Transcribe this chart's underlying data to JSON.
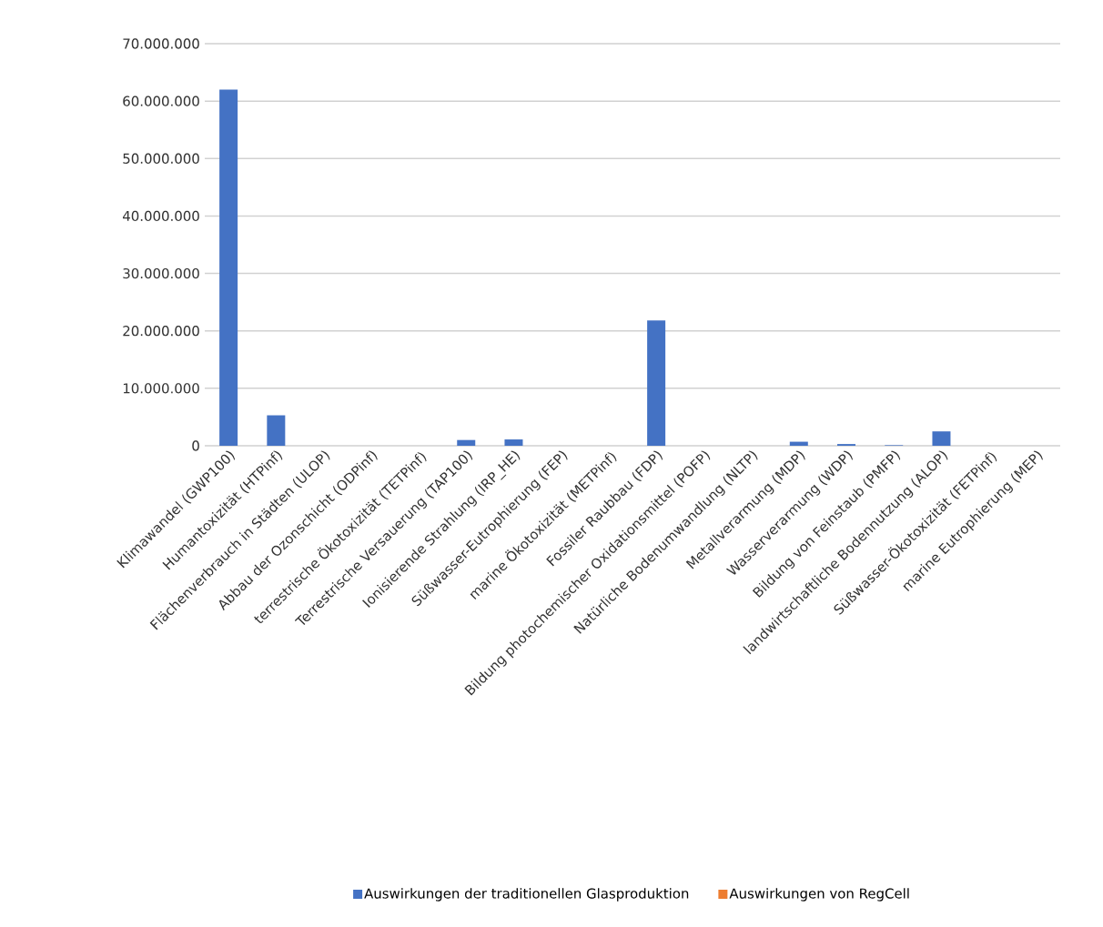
{
  "chart_data": {
    "type": "bar",
    "stacked": true,
    "categories": [
      "Klimawandel (GWP100)",
      "Humantoxizität (HTPinf)",
      "Flächenverbrauch in Städten (ULOP)",
      "Abbau der Ozonschicht (ODPinf)",
      "terrestrische Ökotoxizität (TETPinf)",
      "Terrestrische Versauerung (TAP100)",
      "Ionisierende Strahlung (IRP_HE)",
      "Süßwasser-Eutrophierung (FEP)",
      "marine Ökotoxizität (METPinf)",
      "Fossiler Raubbau (FDP)",
      "Bildung photochemischer Oxidationsmittel (POFP)",
      "Natürliche Bodenumwandlung (NLTP)",
      "Metallverarmung (MDP)",
      "Wasserverarmung (WDP)",
      "Bildung von Feinstaub (PMFP)",
      "landwirtschaftliche Bodennutzung (ALOP)",
      "Süßwasser-Ökotoxizität (FETPinf)",
      "marine Eutrophierung (MEP)"
    ],
    "series": [
      {
        "name": "Auswirkungen der traditionellen Glasproduktion",
        "color": "#4472c4",
        "values": [
          62000000,
          5300000,
          0,
          0,
          0,
          1000000,
          1100000,
          0,
          0,
          21800000,
          0,
          0,
          700000,
          300000,
          100000,
          2500000,
          0,
          0
        ]
      },
      {
        "name": "Auswirkungen von RegCell",
        "color": "#ed7d31",
        "values": [
          0,
          0,
          0,
          0,
          0,
          0,
          0,
          0,
          0,
          0,
          0,
          0,
          0,
          0,
          0,
          0,
          0,
          0
        ]
      }
    ],
    "ylim": [
      0,
      70000000
    ],
    "yticks": [
      {
        "value": 0,
        "label": "0"
      },
      {
        "value": 10000000,
        "label": "10.000.000"
      },
      {
        "value": 20000000,
        "label": "20.000.000"
      },
      {
        "value": 30000000,
        "label": "30.000.000"
      },
      {
        "value": 40000000,
        "label": "40.000.000"
      },
      {
        "value": 50000000,
        "label": "50.000.000"
      },
      {
        "value": 60000000,
        "label": "60.000.000"
      },
      {
        "value": 70000000,
        "label": "70.000.000"
      }
    ],
    "grid": "y",
    "legend": "bottom"
  }
}
